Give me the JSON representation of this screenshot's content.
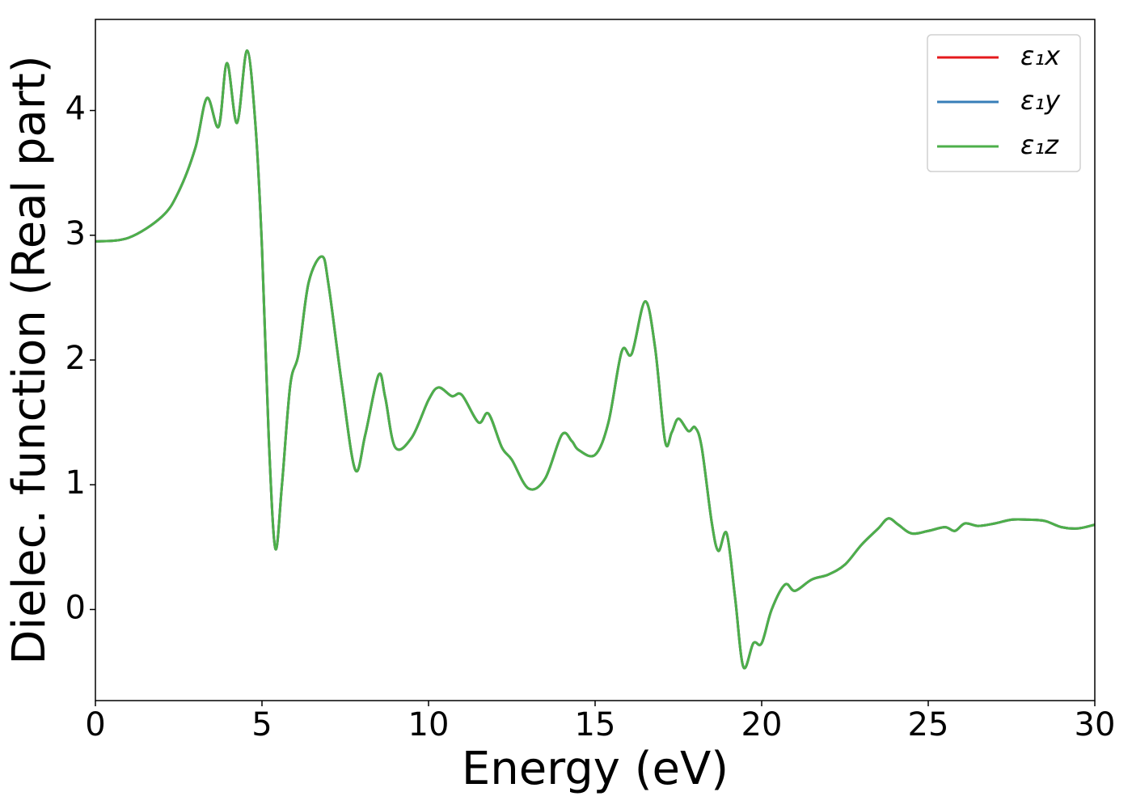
{
  "chart_data": {
    "type": "line",
    "xlabel": "Energy (eV)",
    "ylabel": "Dielec. function (Real part)",
    "x": [
      0,
      1,
      2,
      2.5,
      3,
      3.35,
      3.7,
      3.95,
      4.25,
      4.55,
      4.8,
      5.0,
      5.2,
      5.4,
      5.6,
      5.85,
      6.1,
      6.4,
      6.8,
      7.0,
      7.4,
      7.8,
      8.1,
      8.5,
      8.7,
      9.0,
      9.5,
      10.0,
      10.3,
      10.7,
      11.0,
      11.5,
      11.8,
      12.2,
      12.5,
      13.0,
      13.5,
      14.0,
      14.3,
      14.5,
      15.0,
      15.4,
      15.8,
      16.1,
      16.5,
      16.8,
      17.1,
      17.3,
      17.5,
      17.8,
      18.0,
      18.2,
      18.5,
      18.7,
      18.95,
      19.2,
      19.45,
      19.75,
      20.0,
      20.3,
      20.7,
      21.0,
      21.5,
      22.0,
      22.5,
      23.0,
      23.5,
      23.8,
      24.1,
      24.5,
      25.0,
      25.5,
      25.8,
      26.1,
      26.5,
      27.0,
      27.5,
      28.0,
      28.5,
      29.0,
      29.5,
      30.0
    ],
    "series": [
      {
        "name": "ε₁x",
        "color": "#e41a1c",
        "values": [
          2.95,
          2.98,
          3.15,
          3.35,
          3.7,
          4.1,
          3.87,
          4.38,
          3.9,
          4.48,
          3.9,
          2.9,
          1.4,
          0.49,
          1.0,
          1.8,
          2.05,
          2.62,
          2.83,
          2.6,
          1.8,
          1.12,
          1.4,
          1.88,
          1.7,
          1.3,
          1.38,
          1.68,
          1.78,
          1.71,
          1.72,
          1.5,
          1.57,
          1.3,
          1.2,
          0.97,
          1.05,
          1.4,
          1.35,
          1.28,
          1.24,
          1.5,
          2.07,
          2.05,
          2.47,
          2.1,
          1.35,
          1.42,
          1.53,
          1.43,
          1.46,
          1.3,
          0.7,
          0.47,
          0.61,
          0.1,
          -0.46,
          -0.27,
          -0.27,
          0.0,
          0.2,
          0.15,
          0.24,
          0.28,
          0.36,
          0.52,
          0.65,
          0.73,
          0.68,
          0.61,
          0.63,
          0.66,
          0.63,
          0.69,
          0.67,
          0.69,
          0.72,
          0.72,
          0.71,
          0.66,
          0.65,
          0.68
        ]
      },
      {
        "name": "ε₁y",
        "color": "#377eb8",
        "values": [
          2.95,
          2.98,
          3.15,
          3.35,
          3.7,
          4.1,
          3.87,
          4.38,
          3.9,
          4.48,
          3.9,
          2.9,
          1.4,
          0.49,
          1.0,
          1.8,
          2.05,
          2.62,
          2.83,
          2.6,
          1.8,
          1.12,
          1.4,
          1.88,
          1.7,
          1.3,
          1.38,
          1.68,
          1.78,
          1.71,
          1.72,
          1.5,
          1.57,
          1.3,
          1.2,
          0.97,
          1.05,
          1.4,
          1.35,
          1.28,
          1.24,
          1.5,
          2.07,
          2.05,
          2.47,
          2.1,
          1.35,
          1.42,
          1.53,
          1.43,
          1.46,
          1.3,
          0.7,
          0.47,
          0.61,
          0.1,
          -0.46,
          -0.27,
          -0.27,
          0.0,
          0.2,
          0.15,
          0.24,
          0.28,
          0.36,
          0.52,
          0.65,
          0.73,
          0.68,
          0.61,
          0.63,
          0.66,
          0.63,
          0.69,
          0.67,
          0.69,
          0.72,
          0.72,
          0.71,
          0.66,
          0.65,
          0.68
        ]
      },
      {
        "name": "ε₁z",
        "color": "#4daf4a",
        "values": [
          2.95,
          2.98,
          3.15,
          3.35,
          3.7,
          4.1,
          3.87,
          4.38,
          3.9,
          4.48,
          3.9,
          2.9,
          1.4,
          0.49,
          1.0,
          1.8,
          2.05,
          2.62,
          2.83,
          2.6,
          1.8,
          1.12,
          1.4,
          1.88,
          1.7,
          1.3,
          1.38,
          1.68,
          1.78,
          1.71,
          1.72,
          1.5,
          1.57,
          1.3,
          1.2,
          0.97,
          1.05,
          1.4,
          1.35,
          1.28,
          1.24,
          1.5,
          2.07,
          2.05,
          2.47,
          2.1,
          1.35,
          1.42,
          1.53,
          1.43,
          1.46,
          1.3,
          0.7,
          0.47,
          0.61,
          0.1,
          -0.46,
          -0.27,
          -0.27,
          0.0,
          0.2,
          0.15,
          0.24,
          0.28,
          0.36,
          0.52,
          0.65,
          0.73,
          0.68,
          0.61,
          0.63,
          0.66,
          0.63,
          0.69,
          0.67,
          0.69,
          0.72,
          0.72,
          0.71,
          0.66,
          0.65,
          0.68
        ]
      }
    ],
    "xlim": [
      0,
      30
    ],
    "xticks": [
      0,
      5,
      10,
      15,
      20,
      25,
      30
    ],
    "ylim": [
      -0.73,
      4.73
    ],
    "yticks": [
      0,
      1,
      2,
      3,
      4
    ],
    "grid": false,
    "legend": "upper right"
  }
}
